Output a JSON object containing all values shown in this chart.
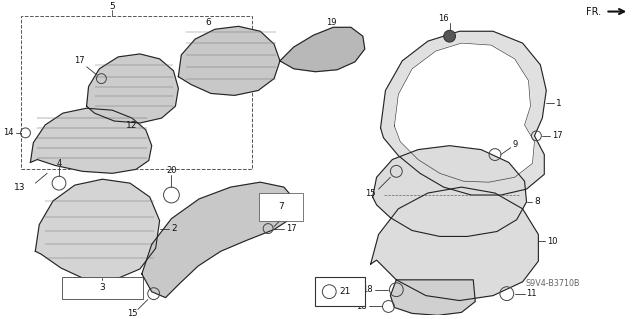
{
  "bg_color": "#ffffff",
  "lc": "#222222",
  "part_code": "S9V4-B3710B",
  "fig_w": 6.4,
  "fig_h": 3.19,
  "dpi": 100
}
